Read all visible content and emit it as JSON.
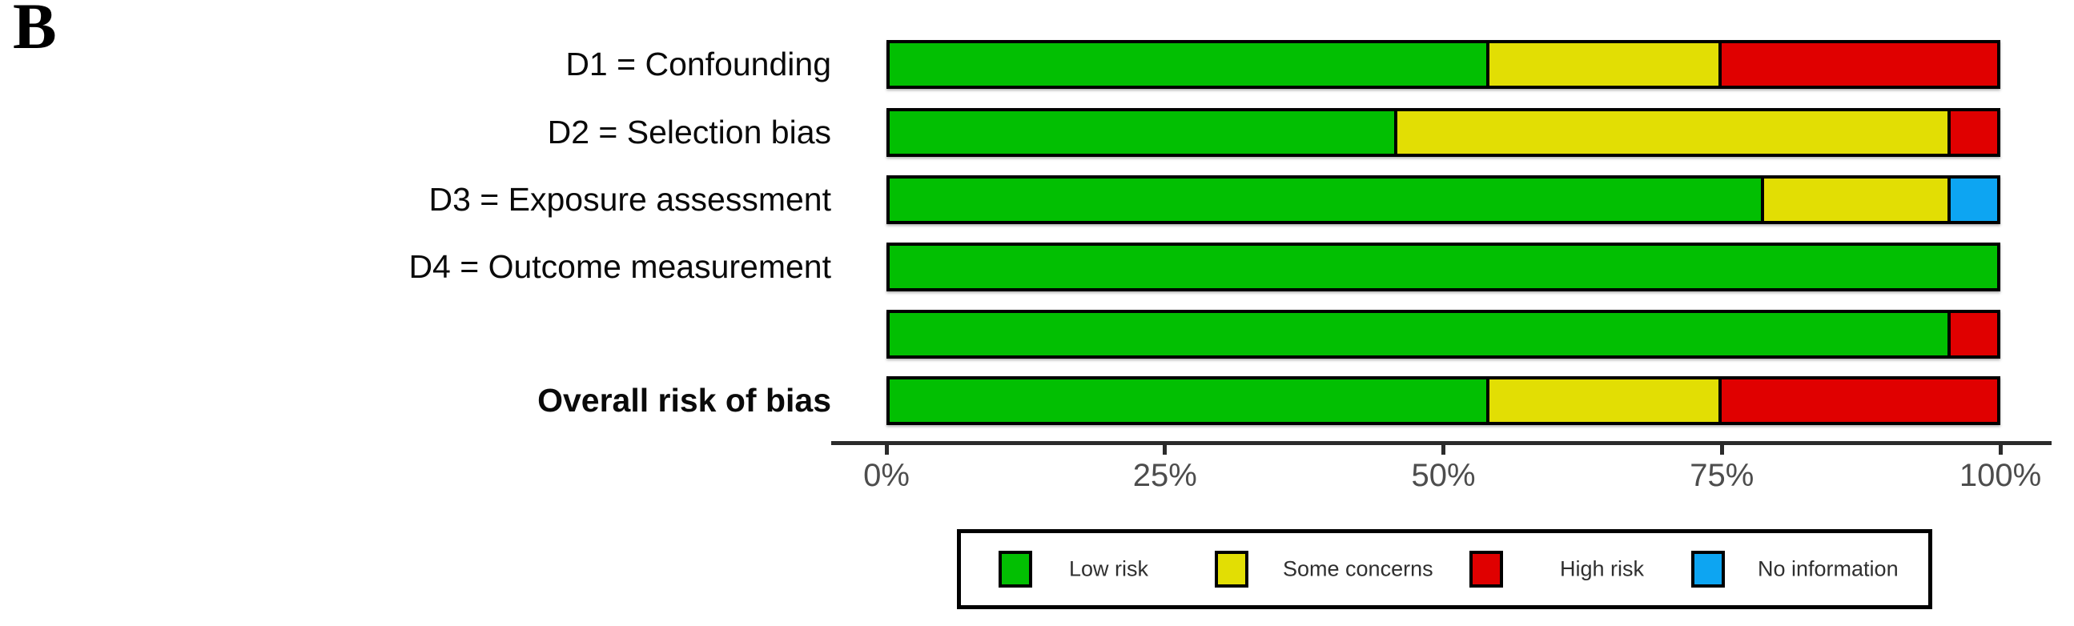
{
  "panel_label": "B",
  "chart_data": {
    "type": "bar",
    "orientation": "horizontal",
    "stacked": true,
    "title": "",
    "xlabel": "",
    "ylabel": "",
    "x_ticks": [
      "0%",
      "25%",
      "50%",
      "75%",
      "100%"
    ],
    "xlim": [
      0,
      100
    ],
    "grid": false,
    "legend_position": "bottom",
    "categories": [
      "D1 = Confounding",
      "D2 = Selection bias",
      "D3 = Exposure assessment",
      "D4 = Outcome measurement",
      "",
      "Overall risk of bias"
    ],
    "emphasized_category": "Overall risk of bias",
    "series": [
      {
        "name": "Low risk",
        "color": "#02bf02",
        "values": [
          54.2,
          45.8,
          79.2,
          100,
          95.8,
          54.2
        ]
      },
      {
        "name": "Some concerns",
        "color": "#e2de04",
        "values": [
          20.8,
          50.0,
          16.7,
          0,
          0,
          20.8
        ]
      },
      {
        "name": "High risk",
        "color": "#e00000",
        "values": [
          25.0,
          4.2,
          0,
          0,
          4.2,
          25.0
        ]
      },
      {
        "name": "No information",
        "color": "#0da5f2",
        "values": [
          0,
          0,
          4.2,
          0,
          0,
          0
        ]
      }
    ]
  },
  "legend": {
    "entries": [
      {
        "label": "Low risk",
        "color": "#02bf02"
      },
      {
        "label": "Some concerns",
        "color": "#e2de04"
      },
      {
        "label": "High risk",
        "color": "#e00000"
      },
      {
        "label": "No information",
        "color": "#0da5f2"
      }
    ]
  }
}
